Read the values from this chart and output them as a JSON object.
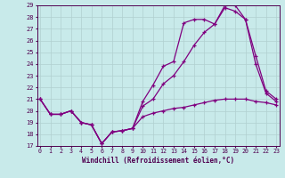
{
  "x": [
    0,
    1,
    2,
    3,
    4,
    5,
    6,
    7,
    8,
    9,
    10,
    11,
    12,
    13,
    14,
    15,
    16,
    17,
    18,
    19,
    20,
    21,
    22,
    23
  ],
  "line_top": [
    21.0,
    19.7,
    19.7,
    20.0,
    19.0,
    18.8,
    17.2,
    18.2,
    18.3,
    18.5,
    20.8,
    22.2,
    23.8,
    24.2,
    27.5,
    27.8,
    27.8,
    27.4,
    29.0,
    29.0,
    27.8,
    24.7,
    21.7,
    21.0
  ],
  "line_mid": [
    21.0,
    19.7,
    19.7,
    20.0,
    19.0,
    18.8,
    17.2,
    18.2,
    18.3,
    18.5,
    20.4,
    21.0,
    22.3,
    23.0,
    24.2,
    25.6,
    26.7,
    27.4,
    28.8,
    28.5,
    27.8,
    24.0,
    21.5,
    20.8
  ],
  "line_bot": [
    21.0,
    19.7,
    19.7,
    20.0,
    19.0,
    18.8,
    17.2,
    18.2,
    18.3,
    18.5,
    19.5,
    19.8,
    20.0,
    20.2,
    20.3,
    20.5,
    20.7,
    20.9,
    21.0,
    21.0,
    21.0,
    20.8,
    20.7,
    20.5
  ],
  "bg_color": "#c8eaea",
  "line_color": "#800080",
  "grid_color": "#b0d0d0",
  "xlabel": "Windchill (Refroidissement éolien,°C)",
  "ylim": [
    17,
    29
  ],
  "xlim": [
    0,
    23
  ],
  "yticks": [
    17,
    18,
    19,
    20,
    21,
    22,
    23,
    24,
    25,
    26,
    27,
    28,
    29
  ],
  "xticks": [
    0,
    1,
    2,
    3,
    4,
    5,
    6,
    7,
    8,
    9,
    10,
    11,
    12,
    13,
    14,
    15,
    16,
    17,
    18,
    19,
    20,
    21,
    22,
    23
  ]
}
